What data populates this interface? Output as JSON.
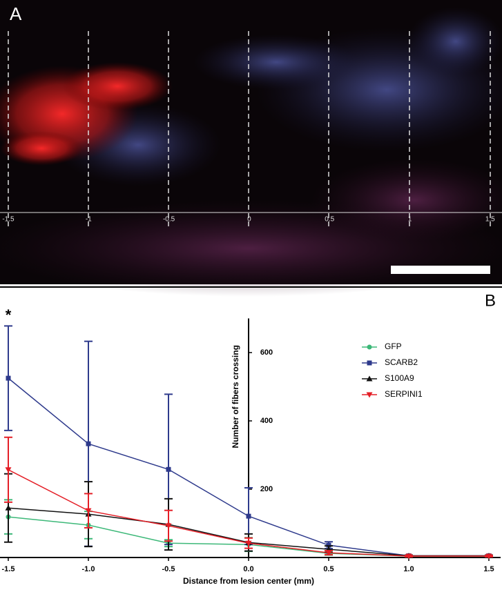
{
  "panel_a": {
    "label": "A",
    "scale_labels": [
      "-1.5",
      "-1",
      "-0.5",
      "0",
      "0.5",
      "1",
      "1.5"
    ]
  },
  "chart_data": {
    "type": "line",
    "panel_label": "B",
    "annotation": "*",
    "x_label": "Distance from lesion center (mm)",
    "y_label": "Number of fibers crossing",
    "x": [
      -1.5,
      -1,
      -0.5,
      0,
      0.5,
      1,
      1.5
    ],
    "xlim": [
      -1.5,
      1.5
    ],
    "xticks": [
      -1.5,
      {
        "value": -1,
        "label": "-1.0"
      },
      -0.5,
      {
        "value": 0,
        "label": "0.0"
      },
      0.5,
      {
        "value": 1,
        "label": "1.0"
      },
      1.5
    ],
    "ylim": [
      0,
      700
    ],
    "yticks": [
      200,
      400,
      600
    ],
    "series": [
      {
        "name": "GFP",
        "color": "#3cb878",
        "marker": "circle",
        "values": [
          119,
          95,
          42,
          38,
          12,
          4,
          4
        ],
        "errors": [
          50,
          40,
          10,
          20,
          5,
          2,
          2
        ]
      },
      {
        "name": "SCARB2",
        "color": "#2e3a8c",
        "marker": "square",
        "values": [
          525,
          333,
          258,
          121,
          36,
          5,
          5
        ],
        "errors": [
          153,
          300,
          220,
          83,
          10,
          2,
          2
        ]
      },
      {
        "name": "S100A9",
        "color": "#111111",
        "marker": "triangle-up",
        "values": [
          145,
          127,
          97,
          44,
          24,
          5,
          5
        ],
        "errors": [
          100,
          95,
          75,
          25,
          10,
          2,
          2
        ]
      },
      {
        "name": "SERPINI1",
        "color": "#e41e26",
        "marker": "triangle-down",
        "values": [
          257,
          137,
          93,
          42,
          14,
          4,
          4
        ],
        "errors": [
          95,
          50,
          45,
          15,
          6,
          2,
          2
        ]
      }
    ]
  }
}
